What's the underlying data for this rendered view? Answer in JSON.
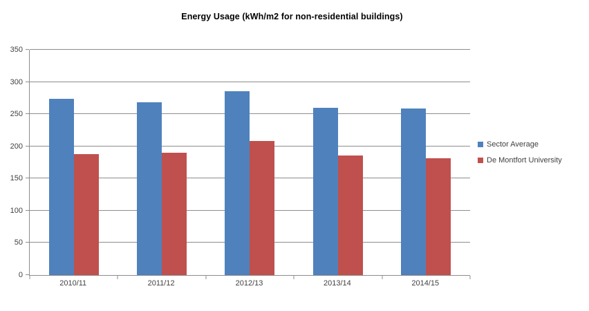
{
  "chart_data": {
    "type": "bar",
    "title": "Energy Usage (kWh/m2 for non-residential buildings)",
    "categories": [
      "2010/11",
      "2011/12",
      "2012/13",
      "2013/14",
      "2014/15"
    ],
    "series": [
      {
        "name": "Sector Average",
        "color": "#4F81BD",
        "values": [
          274,
          268,
          286,
          260,
          259
        ]
      },
      {
        "name": "De Montfort University",
        "color": "#C0504D",
        "values": [
          188,
          190,
          208,
          186,
          181
        ]
      }
    ],
    "xlabel": "",
    "ylabel": "",
    "ylim": [
      0,
      350
    ],
    "yticks": [
      0,
      50,
      100,
      150,
      200,
      250,
      300,
      350
    ],
    "grid": true,
    "legend_position": "right"
  },
  "colors": {
    "background": "#FFFFFF",
    "gridline": "#8C8C8C",
    "axis": "#8C8C8C",
    "tick_text": "#404040",
    "title_text": "#000000"
  }
}
